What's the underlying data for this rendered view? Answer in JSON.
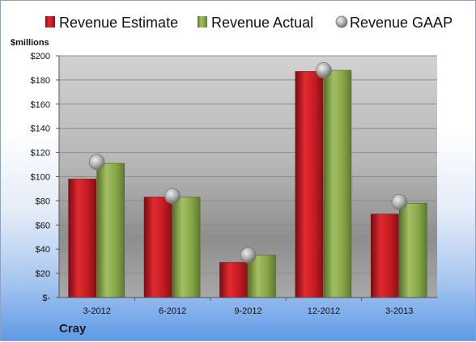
{
  "company": "Cray",
  "chart_data": {
    "type": "bar",
    "ylabel": "$millions",
    "ylim": [
      0,
      200
    ],
    "yticks": [
      0,
      20,
      40,
      60,
      80,
      100,
      120,
      140,
      160,
      180,
      200
    ],
    "ytick_labels": [
      "$-",
      "$20",
      "$40",
      "$60",
      "$80",
      "$100",
      "$120",
      "$140",
      "$160",
      "$180",
      "$200"
    ],
    "categories": [
      "3-2012",
      "6-2012",
      "9-2012",
      "12-2012",
      "3-2013"
    ],
    "series": [
      {
        "name": "Revenue Estimate",
        "kind": "bar",
        "color": "#cc1f26",
        "values": [
          98,
          83,
          29,
          187,
          69
        ]
      },
      {
        "name": "Revenue Actual",
        "kind": "bar",
        "color": "#8aa84a",
        "values": [
          111,
          83,
          35,
          188,
          78
        ]
      },
      {
        "name": "Revenue GAAP",
        "kind": "marker",
        "color": "#a9a9a9",
        "values": [
          112,
          84,
          35,
          188,
          79
        ]
      }
    ],
    "grid": true,
    "legend": "top"
  }
}
